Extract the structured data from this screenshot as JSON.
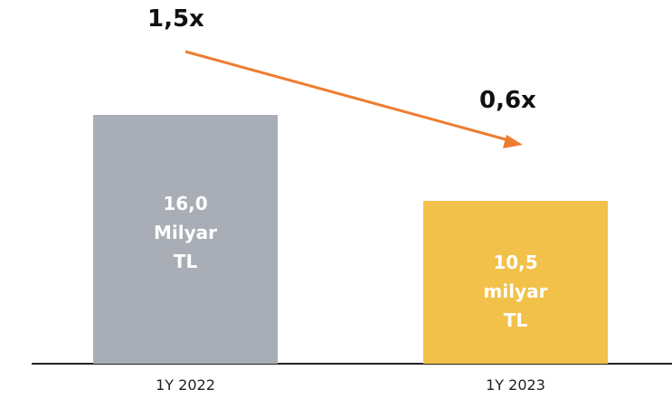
{
  "chart_data": {
    "type": "bar",
    "categories": [
      "1Y 2022",
      "1Y 2023"
    ],
    "values": [
      16.0,
      10.5
    ],
    "value_labels": [
      "16,0 Milyar TL",
      "10,5 milyar TL"
    ],
    "colors": [
      "#a9adb5",
      "#f2c14a"
    ],
    "annotations": [
      "1,5x",
      "0,6x"
    ]
  }
}
